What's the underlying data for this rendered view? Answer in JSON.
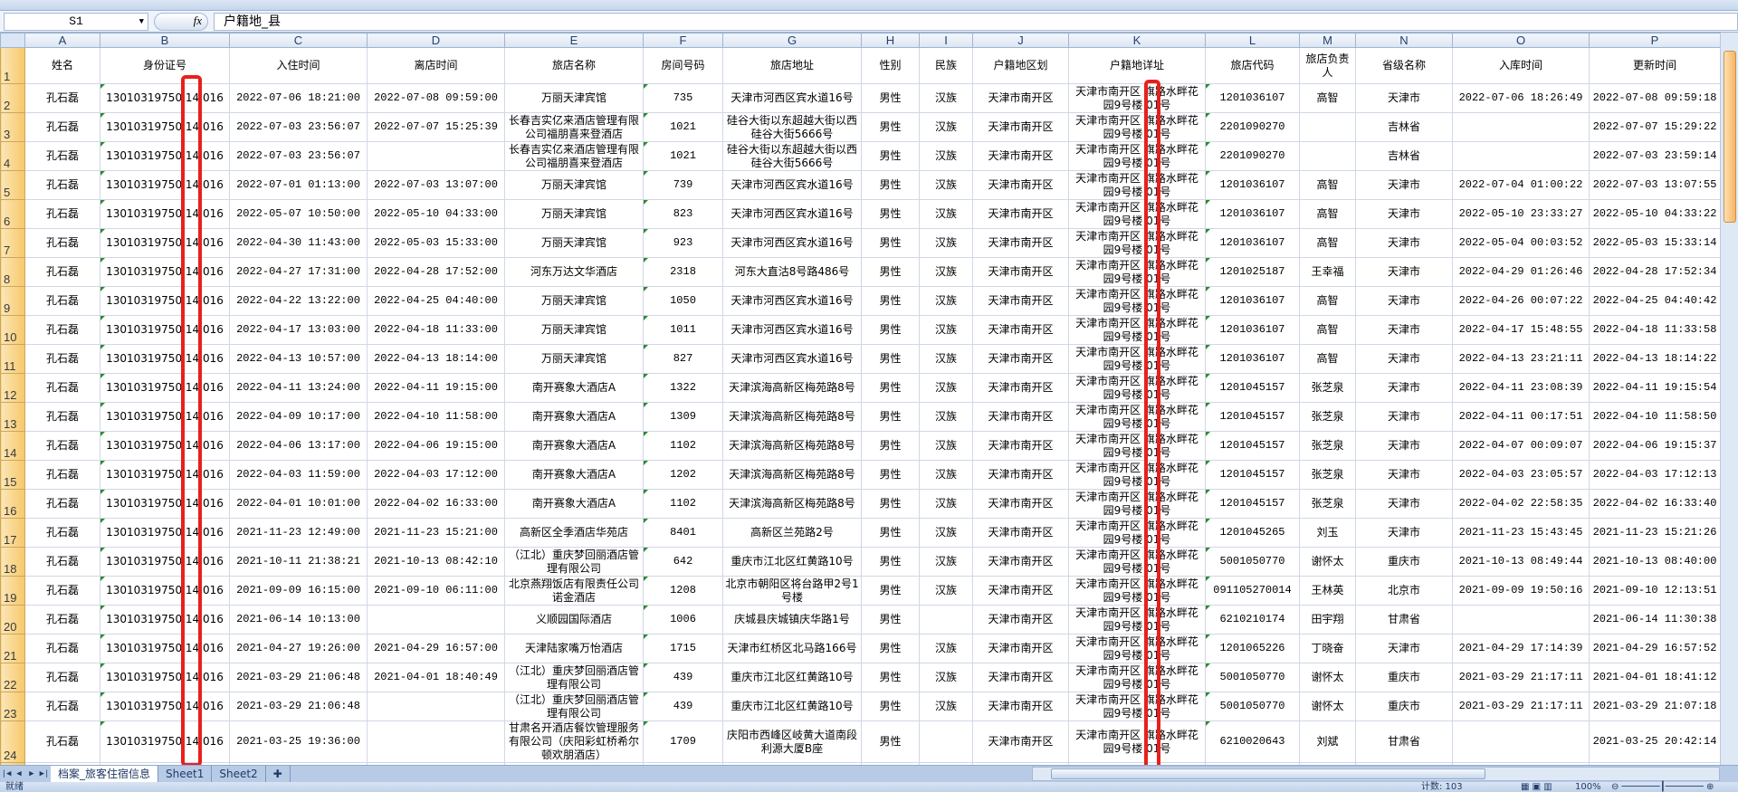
{
  "formula_bar": {
    "name_box": "S1",
    "fx_label": "fx",
    "content": "户籍地_县"
  },
  "columns": [
    "A",
    "B",
    "C",
    "D",
    "E",
    "F",
    "G",
    "H",
    "I",
    "J",
    "K",
    "L",
    "M",
    "N",
    "O",
    "P"
  ],
  "headers": [
    "姓名",
    "身份证号",
    "入住时间",
    "离店时间",
    "旅店名称",
    "房间号码",
    "旅店地址",
    "性别",
    "民族",
    "户籍地区划",
    "户籍地详址",
    "旅店代码",
    "旅店负责人",
    "省级名称",
    "入库时间",
    "更新时间"
  ],
  "rows": [
    [
      "孔石磊",
      "13010319750 14 016",
      "2022-07-06 18:21:00",
      "2022-07-08 09:59:00",
      "万丽天津宾馆",
      "735",
      "天津市河西区宾水道16号",
      "男性",
      "汉族",
      "天津市南开区",
      "天津市南开区 旗路水畔花园9号楼 01号",
      "1201036107",
      "高智",
      "天津市",
      "2022-07-06 18:26:49",
      "2022-07-08 09:59:18"
    ],
    [
      "孔石磊",
      "13010319750 14 016",
      "2022-07-03 23:56:07",
      "2022-07-07 15:25:39",
      "长春吉实亿来酒店管理有限公司福朋喜来登酒店",
      "1021",
      "硅谷大街以东超越大街以西硅谷大街5666号",
      "男性",
      "汉族",
      "天津市南开区",
      "天津市南开区 旗路水畔花园9号楼 01号",
      "2201090270",
      "",
      "吉林省",
      "",
      "2022-07-07 15:29:22"
    ],
    [
      "孔石磊",
      "13010319750 14 016",
      "2022-07-03 23:56:07",
      "",
      "长春吉实亿来酒店管理有限公司福朋喜来登酒店",
      "1021",
      "硅谷大街以东超越大街以西硅谷大街5666号",
      "男性",
      "汉族",
      "天津市南开区",
      "天津市南开区 旗路水畔花园9号楼 01号",
      "2201090270",
      "",
      "吉林省",
      "",
      "2022-07-03 23:59:14"
    ],
    [
      "孔石磊",
      "13010319750 14 016",
      "2022-07-01 01:13:00",
      "2022-07-03 13:07:00",
      "万丽天津宾馆",
      "739",
      "天津市河西区宾水道16号",
      "男性",
      "汉族",
      "天津市南开区",
      "天津市南开区 旗路水畔花园9号楼 01号",
      "1201036107",
      "高智",
      "天津市",
      "2022-07-04 01:00:22",
      "2022-07-03 13:07:55"
    ],
    [
      "孔石磊",
      "13010319750 14 016",
      "2022-05-07 10:50:00",
      "2022-05-10 04:33:00",
      "万丽天津宾馆",
      "823",
      "天津市河西区宾水道16号",
      "男性",
      "汉族",
      "天津市南开区",
      "天津市南开区 旗路水畔花园9号楼 01号",
      "1201036107",
      "高智",
      "天津市",
      "2022-05-10 23:33:27",
      "2022-05-10 04:33:22"
    ],
    [
      "孔石磊",
      "13010319750 14 016",
      "2022-04-30 11:43:00",
      "2022-05-03 15:33:00",
      "万丽天津宾馆",
      "923",
      "天津市河西区宾水道16号",
      "男性",
      "汉族",
      "天津市南开区",
      "天津市南开区 旗路水畔花园9号楼 01号",
      "1201036107",
      "高智",
      "天津市",
      "2022-05-04 00:03:52",
      "2022-05-03 15:33:14"
    ],
    [
      "孔石磊",
      "13010319750 14 016",
      "2022-04-27 17:31:00",
      "2022-04-28 17:52:00",
      "河东万达文华酒店",
      "2318",
      "河东大直沽8号路486号",
      "男性",
      "汉族",
      "天津市南开区",
      "天津市南开区 旗路水畔花园9号楼 01号",
      "1201025187",
      "王幸福",
      "天津市",
      "2022-04-29 01:26:46",
      "2022-04-28 17:52:34"
    ],
    [
      "孔石磊",
      "13010319750 14 016",
      "2022-04-22 13:22:00",
      "2022-04-25 04:40:00",
      "万丽天津宾馆",
      "1050",
      "天津市河西区宾水道16号",
      "男性",
      "汉族",
      "天津市南开区",
      "天津市南开区 旗路水畔花园9号楼 01号",
      "1201036107",
      "高智",
      "天津市",
      "2022-04-26 00:07:22",
      "2022-04-25 04:40:42"
    ],
    [
      "孔石磊",
      "13010319750 14 016",
      "2022-04-17 13:03:00",
      "2022-04-18 11:33:00",
      "万丽天津宾馆",
      "1011",
      "天津市河西区宾水道16号",
      "男性",
      "汉族",
      "天津市南开区",
      "天津市南开区 旗路水畔花园9号楼 01号",
      "1201036107",
      "高智",
      "天津市",
      "2022-04-17 15:48:55",
      "2022-04-18 11:33:58"
    ],
    [
      "孔石磊",
      "13010319750 14 016",
      "2022-04-13 10:57:00",
      "2022-04-13 18:14:00",
      "万丽天津宾馆",
      "827",
      "天津市河西区宾水道16号",
      "男性",
      "汉族",
      "天津市南开区",
      "天津市南开区 旗路水畔花园9号楼 01号",
      "1201036107",
      "高智",
      "天津市",
      "2022-04-13 23:21:11",
      "2022-04-13 18:14:22"
    ],
    [
      "孔石磊",
      "13010319750 14 016",
      "2022-04-11 13:24:00",
      "2022-04-11 19:15:00",
      "南开赛象大酒店A",
      "1322",
      "天津滨海高新区梅苑路8号",
      "男性",
      "汉族",
      "天津市南开区",
      "天津市南开区 旗路水畔花园9号楼 01号",
      "1201045157",
      "张芝泉",
      "天津市",
      "2022-04-11 23:08:39",
      "2022-04-11 19:15:54"
    ],
    [
      "孔石磊",
      "13010319750 14 016",
      "2022-04-09 10:17:00",
      "2022-04-10 11:58:00",
      "南开赛象大酒店A",
      "1309",
      "天津滨海高新区梅苑路8号",
      "男性",
      "汉族",
      "天津市南开区",
      "天津市南开区 旗路水畔花园9号楼 01号",
      "1201045157",
      "张芝泉",
      "天津市",
      "2022-04-11 00:17:51",
      "2022-04-10 11:58:50"
    ],
    [
      "孔石磊",
      "13010319750 14 016",
      "2022-04-06 13:17:00",
      "2022-04-06 19:15:00",
      "南开赛象大酒店A",
      "1102",
      "天津滨海高新区梅苑路8号",
      "男性",
      "汉族",
      "天津市南开区",
      "天津市南开区 旗路水畔花园9号楼 01号",
      "1201045157",
      "张芝泉",
      "天津市",
      "2022-04-07 00:09:07",
      "2022-04-06 19:15:37"
    ],
    [
      "孔石磊",
      "13010319750 14 016",
      "2022-04-03 11:59:00",
      "2022-04-03 17:12:00",
      "南开赛象大酒店A",
      "1202",
      "天津滨海高新区梅苑路8号",
      "男性",
      "汉族",
      "天津市南开区",
      "天津市南开区 旗路水畔花园9号楼 01号",
      "1201045157",
      "张芝泉",
      "天津市",
      "2022-04-03 23:05:57",
      "2022-04-03 17:12:13"
    ],
    [
      "孔石磊",
      "13010319750 14 016",
      "2022-04-01 10:01:00",
      "2022-04-02 16:33:00",
      "南开赛象大酒店A",
      "1102",
      "天津滨海高新区梅苑路8号",
      "男性",
      "汉族",
      "天津市南开区",
      "天津市南开区 旗路水畔花园9号楼 01号",
      "1201045157",
      "张芝泉",
      "天津市",
      "2022-04-02 22:58:35",
      "2022-04-02 16:33:40"
    ],
    [
      "孔石磊",
      "13010319750 14 016",
      "2021-11-23 12:49:00",
      "2021-11-23 15:21:00",
      "高新区全季酒店华苑店",
      "8401",
      "高新区兰苑路2号",
      "男性",
      "汉族",
      "天津市南开区",
      "天津市南开区 旗路水畔花园9号楼 01号",
      "1201045265",
      "刘玉",
      "天津市",
      "2021-11-23 15:43:45",
      "2021-11-23 15:21:26"
    ],
    [
      "孔石磊",
      "13010319750 14 016",
      "2021-10-11 21:38:21",
      "2021-10-13 08:42:10",
      "（江北）重庆梦回丽酒店管理有限公司",
      "642",
      "重庆市江北区红黄路10号",
      "男性",
      "汉族",
      "天津市南开区",
      "天津市南开区 旗路水畔花园9号楼 01号",
      "5001050770",
      "谢怀太",
      "重庆市",
      "2021-10-13 08:49:44",
      "2021-10-13 08:40:00"
    ],
    [
      "孔石磊",
      "13010319750 14 016",
      "2021-09-09 16:15:00",
      "2021-09-10 06:11:00",
      "北京燕翔饭店有限责任公司诺金酒店",
      "1208",
      "北京市朝阳区将台路甲2号1号楼",
      "男性",
      "汉族",
      "天津市南开区",
      "天津市南开区 旗路水畔花园9号楼 01号",
      "091105270014",
      "王林英",
      "北京市",
      "2021-09-09 19:50:16",
      "2021-09-10 12:13:51"
    ],
    [
      "孔石磊",
      "13010319750 14 016",
      "2021-06-14 10:13:00",
      "",
      "义顺园国际酒店",
      "1006",
      "庆城县庆城镇庆华路1号",
      "男性",
      "",
      "天津市南开区",
      "天津市南开区 旗路水畔花园9号楼 01号",
      "6210210174",
      "田宇翔",
      "甘肃省",
      "",
      "2021-06-14 11:30:38"
    ],
    [
      "孔石磊",
      "13010319750 14 016",
      "2021-04-27 19:26:00",
      "2021-04-29 16:57:00",
      "天津陆家嘴万怡酒店",
      "1715",
      "天津市红桥区北马路166号",
      "男性",
      "汉族",
      "天津市南开区",
      "天津市南开区 旗路水畔花园9号楼 01号",
      "1201065226",
      "丁晓奋",
      "天津市",
      "2021-04-29 17:14:39",
      "2021-04-29 16:57:52"
    ],
    [
      "孔石磊",
      "13010319750 14 016",
      "2021-03-29 21:06:48",
      "2021-04-01 18:40:49",
      "（江北）重庆梦回丽酒店管理有限公司",
      "439",
      "重庆市江北区红黄路10号",
      "男性",
      "汉族",
      "天津市南开区",
      "天津市南开区 旗路水畔花园9号楼 01号",
      "5001050770",
      "谢怀太",
      "重庆市",
      "2021-03-29 21:17:11",
      "2021-04-01 18:41:12"
    ],
    [
      "孔石磊",
      "13010319750 14 016",
      "2021-03-29 21:06:48",
      "",
      "（江北）重庆梦回丽酒店管理有限公司",
      "439",
      "重庆市江北区红黄路10号",
      "男性",
      "汉族",
      "天津市南开区",
      "天津市南开区 旗路水畔花园9号楼 01号",
      "5001050770",
      "谢怀太",
      "重庆市",
      "2021-03-29 21:17:11",
      "2021-03-29 21:07:18"
    ],
    [
      "孔石磊",
      "13010319750 14 016",
      "2021-03-25 19:36:00",
      "",
      "甘肃名开酒店餐饮管理服务有限公司（庆阳彩虹桥希尔顿欢朋酒店）",
      "1709",
      "庆阳市西峰区岐黄大道南段利源大厦B座",
      "男性",
      "",
      "天津市南开区",
      "天津市南开区 旗路水畔花园9号楼 01号",
      "6210020643",
      "刘斌",
      "甘肃省",
      "",
      "2021-03-25 20:42:14"
    ]
  ],
  "sheet_tabs": [
    {
      "label": "档案_旅客住宿信息",
      "active": true
    },
    {
      "label": "Sheet1",
      "active": false
    },
    {
      "label": "Sheet2",
      "active": false
    }
  ],
  "status": {
    "ready": "就绪",
    "count": "计数: 103",
    "zoom": "100%"
  },
  "colors": {
    "highlight": "#e8201c",
    "row_header": "#f6c86a",
    "col_header": "#dbe5f3"
  }
}
